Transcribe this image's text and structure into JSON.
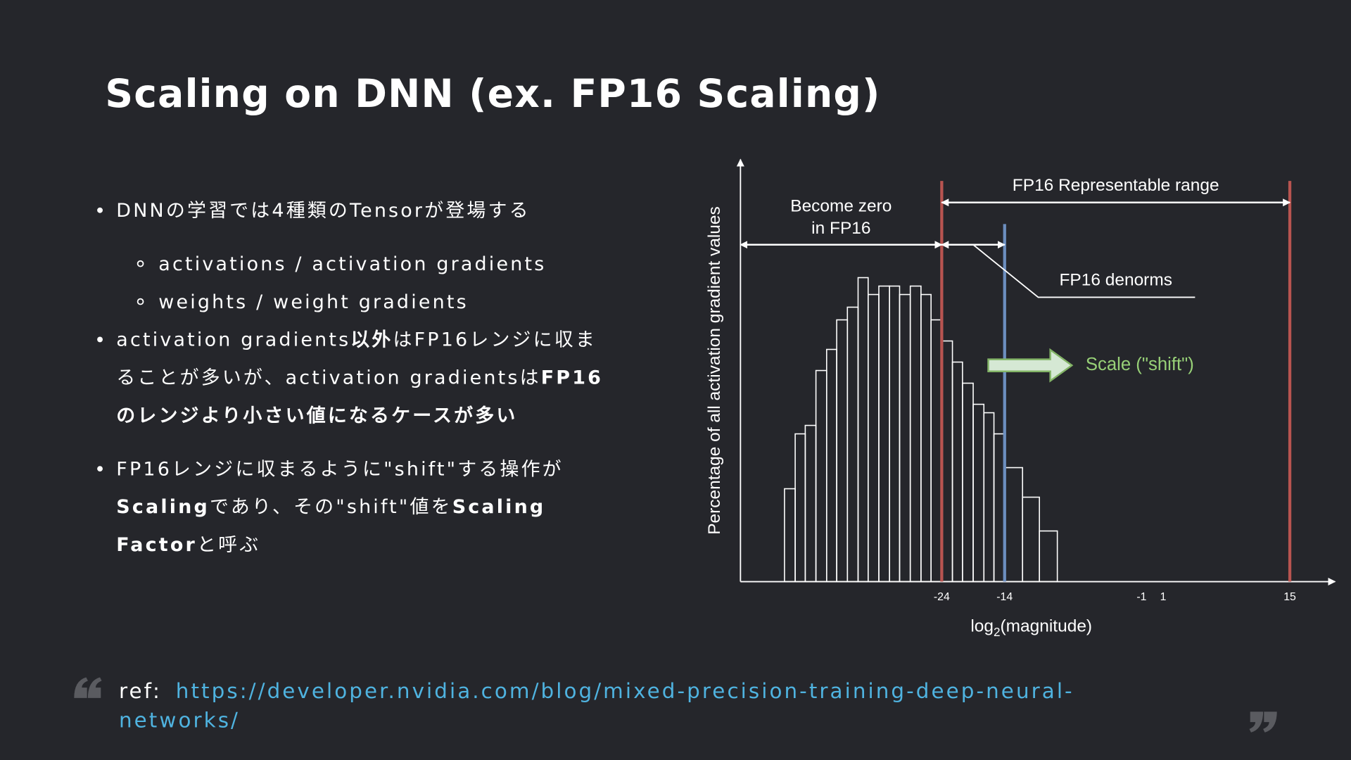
{
  "slide": {
    "title": "Scaling on DNN (ex. FP16 Scaling)",
    "bullets": [
      {
        "level": 0,
        "lines": [
          [
            {
              "text": "DNNの学習では4種類のTensorが登場する",
              "bold": false
            }
          ]
        ]
      },
      {
        "level": 1,
        "lines": [
          [
            {
              "text": "activations / activation gradients",
              "bold": false
            }
          ]
        ]
      },
      {
        "level": 1,
        "lines": [
          [
            {
              "text": "weights / weight gradients",
              "bold": false
            }
          ]
        ]
      },
      {
        "level": 0,
        "lines": [
          [
            {
              "text": "activation gradients",
              "bold": false
            },
            {
              "text": "以外",
              "bold": true
            },
            {
              "text": "はFP16レンジに収ま",
              "bold": false
            }
          ],
          [
            {
              "text": "ることが多いが、activation gradientsは",
              "bold": false
            },
            {
              "text": "FP16",
              "bold": true
            }
          ],
          [
            {
              "text": "のレンジより小さい値になるケースが多い",
              "bold": true
            }
          ]
        ]
      },
      {
        "level": 0,
        "lines": [
          [
            {
              "text": "FP16レンジに収まるように\"shift\"する操作が",
              "bold": false
            }
          ],
          [
            {
              "text": "Scaling",
              "bold": true
            },
            {
              "text": "であり、その\"shift\"値を",
              "bold": false
            },
            {
              "text": "Scaling",
              "bold": true
            }
          ],
          [
            {
              "text": "Factor",
              "bold": true
            },
            {
              "text": "と呼ぶ",
              "bold": false
            }
          ]
        ]
      }
    ]
  },
  "ref": {
    "label": "ref:",
    "link": [
      "https://developer.nvidia.com/blog/mixed-precision-training-deep-neural-",
      "networks/"
    ]
  },
  "chart_data": {
    "type": "histogram",
    "ylabel": "Percentage of all activation gradient values",
    "xlabel": {
      "text": "log",
      "sub": "2",
      "rest": "(magnitude)"
    },
    "bins": [
      -49,
      -47.3,
      -45.7,
      -44,
      -42.3,
      -40.7,
      -39,
      -37.3,
      -35.7,
      -34,
      -32.3,
      -30.7,
      -29,
      -27.3,
      -25.7,
      -24,
      -22.3,
      -20.7,
      -19,
      -17.3,
      -15.7,
      -14,
      -12.3,
      -10.7,
      -9
    ],
    "values": [
      22,
      35,
      37,
      50,
      55,
      62,
      65,
      72,
      68,
      70,
      70,
      68,
      70,
      68,
      62,
      57,
      52,
      47,
      42,
      40,
      35,
      27,
      20,
      12
    ],
    "color": "#ffffff",
    "xlim": [
      -56,
      20
    ],
    "ylim": [
      0,
      100
    ],
    "xticks": [
      -24,
      -14,
      -1,
      1,
      15
    ],
    "vlines": [
      {
        "value": -24,
        "color": "#b85450"
      },
      {
        "value": -14,
        "color": "#6c8ebf"
      },
      {
        "value": 15,
        "color": "#b85450"
      }
    ],
    "range_label": "FP16 Representable range",
    "zero_label": [
      "Become zero",
      "in FP16"
    ],
    "denorm_label": "FP16 denorms",
    "scale_label": "Scale (\"shift\")",
    "scale_color": "#97d077"
  }
}
